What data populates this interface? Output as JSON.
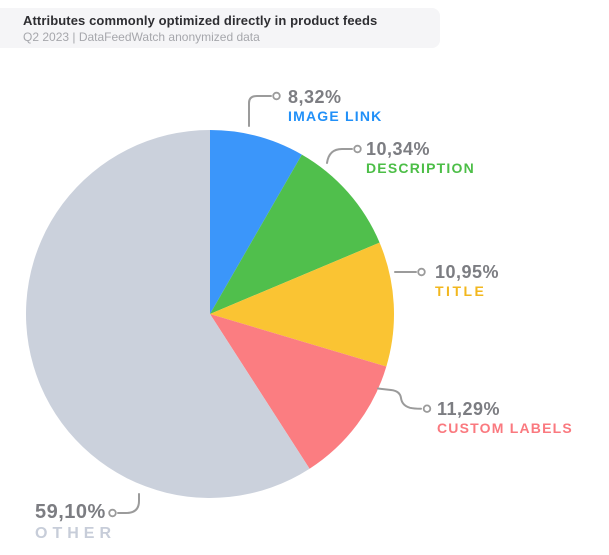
{
  "chart_data": {
    "type": "pie",
    "title": "Attributes commonly optimized directly in product feeds",
    "subtitle": "Q2 2023 | DataFeedWatch anonymized data",
    "start_angle_deg": -90,
    "direction": "clockwise",
    "legend_position": "callout-labels",
    "slices": [
      {
        "label": "IMAGE LINK",
        "value_pct": 8.32,
        "value_label": "8,32%",
        "color": "#3B96FA",
        "label_color": "#2190F8"
      },
      {
        "label": "DESCRIPTION",
        "value_pct": 10.34,
        "value_label": "10,34%",
        "color": "#50BF4C",
        "label_color": "#4CBE47"
      },
      {
        "label": "TITLE",
        "value_pct": 10.95,
        "value_label": "10,95%",
        "color": "#FAC433",
        "label_color": "#F2B71E"
      },
      {
        "label": "CUSTOM LABELS",
        "value_pct": 11.29,
        "value_label": "11,29%",
        "color": "#FB7D81",
        "label_color": "#FA797F"
      },
      {
        "label": "OTHER",
        "value_pct": 59.1,
        "value_label": "59,10%",
        "color": "#CBD1DC",
        "label_color": "#C7CDD9"
      }
    ],
    "value_text_color": "#7C7D82",
    "callout_color": "#9B9B9B",
    "header_background": "#F5F5F7",
    "title_color": "#2E2E32",
    "subtitle_color": "#A6A7AC"
  }
}
